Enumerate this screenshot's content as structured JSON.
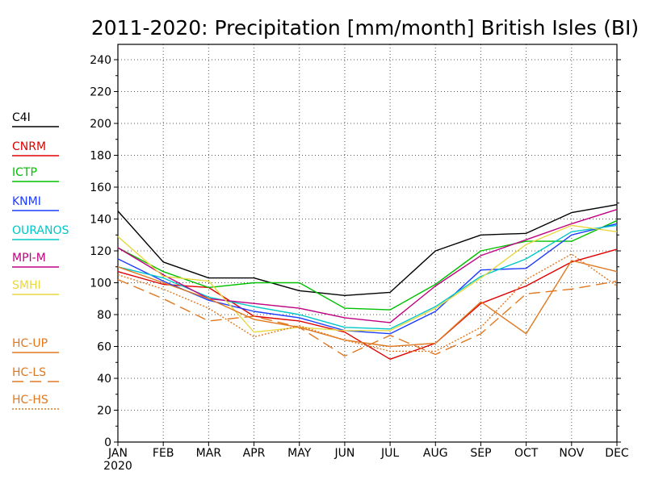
{
  "chart_data": {
    "type": "line",
    "title": "2011-2020: Precipitation [mm/month] British Isles (BI)",
    "xlabel": "",
    "ylabel": "",
    "categories": [
      "JAN",
      "FEB",
      "MAR",
      "APR",
      "MAY",
      "JUN",
      "JUL",
      "AUG",
      "SEP",
      "OCT",
      "NOV",
      "DEC"
    ],
    "x_sublabel": "2020",
    "ylim": [
      0,
      240
    ],
    "yticks": [
      0,
      20,
      40,
      60,
      80,
      100,
      120,
      140,
      160,
      180,
      200,
      220,
      240
    ],
    "grid": true,
    "legend_placement": "left",
    "series": [
      {
        "name": "C4I",
        "color": "#000000",
        "dash": "solid",
        "values": [
          145,
          113,
          103,
          103,
          95,
          92,
          94,
          120,
          130,
          131,
          144,
          149
        ]
      },
      {
        "name": "CNRM",
        "color": "#e00000",
        "dash": "solid",
        "values": [
          107,
          99,
          97,
          79,
          76,
          69,
          52,
          62,
          87,
          98,
          113,
          121
        ]
      },
      {
        "name": "ICTP",
        "color": "#00c000",
        "dash": "solid",
        "values": [
          122,
          107,
          97,
          100,
          100,
          84,
          83,
          99,
          120,
          126,
          126,
          139
        ]
      },
      {
        "name": "KNMI",
        "color": "#1e3cff",
        "dash": "solid",
        "values": [
          115,
          101,
          89,
          82,
          78,
          70,
          68,
          82,
          108,
          109,
          130,
          137
        ]
      },
      {
        "name": "OURANOS",
        "color": "#00c8c8",
        "dash": "solid",
        "values": [
          110,
          103,
          91,
          85,
          80,
          72,
          71,
          85,
          104,
          115,
          132,
          136
        ]
      },
      {
        "name": "MPI-M",
        "color": "#c00080",
        "dash": "solid",
        "values": [
          122,
          105,
          90,
          87,
          84,
          78,
          75,
          98,
          117,
          127,
          137,
          146
        ]
      },
      {
        "name": "SMHI",
        "color": "#e8d840",
        "dash": "solid",
        "values": [
          129,
          104,
          101,
          69,
          72,
          70,
          70,
          84,
          103,
          124,
          136,
          132
        ]
      },
      {
        "name": "HC-UP",
        "color": "#e07820",
        "dash": "solid",
        "values": [
          110,
          100,
          90,
          77,
          72,
          64,
          60,
          62,
          88,
          68,
          114,
          107
        ]
      },
      {
        "name": "HC-LS",
        "color": "#e07820",
        "dash": "longdash",
        "values": [
          102,
          90,
          76,
          79,
          72,
          54,
          67,
          55,
          68,
          93,
          96,
          101
        ]
      },
      {
        "name": "HC-HS",
        "color": "#e07820",
        "dash": "dotted",
        "values": [
          105,
          96,
          84,
          66,
          73,
          64,
          57,
          57,
          72,
          102,
          118,
          98
        ]
      }
    ]
  }
}
